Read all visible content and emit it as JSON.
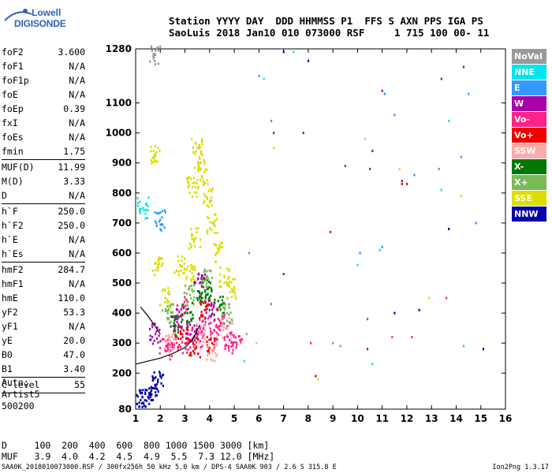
{
  "logo": {
    "line1": "Lowell",
    "line2": "DIGISONDE"
  },
  "header": {
    "line1": "Station YYYY DAY  DDD HHMMSS P1  FFS S AXN PPS IGA PS",
    "line2": "SaoLuis 2018 Jan10 010 073000 RSF     1 715 100 00- 11"
  },
  "params": [
    {
      "k": "foF2",
      "v": "3.600"
    },
    {
      "k": "foF1",
      "v": "N/A"
    },
    {
      "k": "foF1p",
      "v": "N/A"
    },
    {
      "k": "foE",
      "v": "N/A"
    },
    {
      "k": "foEp",
      "v": "0.39"
    },
    {
      "k": "fxI",
      "v": "N/A"
    },
    {
      "k": "foEs",
      "v": "N/A"
    },
    {
      "k": "fmin",
      "v": "1.75"
    },
    {
      "sep": true
    },
    {
      "k": "MUF(D)",
      "v": "11.99"
    },
    {
      "k": "M(D)",
      "v": "3.33"
    },
    {
      "k": "D",
      "v": "N/A"
    },
    {
      "sep": true
    },
    {
      "k": "h`F",
      "v": "250.0"
    },
    {
      "k": "h`F2",
      "v": "250.0"
    },
    {
      "k": "h`E",
      "v": "N/A"
    },
    {
      "k": "h`Es",
      "v": "N/A"
    },
    {
      "sep": true
    },
    {
      "k": "hmF2",
      "v": "284.7"
    },
    {
      "k": "hmF1",
      "v": "N/A"
    },
    {
      "k": "hmE",
      "v": "110.0"
    },
    {
      "k": "yF2",
      "v": "53.3"
    },
    {
      "k": "yF1",
      "v": "N/A"
    },
    {
      "k": "yE",
      "v": "20.0"
    },
    {
      "k": "B0",
      "v": "47.0"
    },
    {
      "k": "B1",
      "v": "3.40"
    },
    {
      "sep": true
    },
    {
      "k": "C-level",
      "v": "55"
    },
    {
      "sep": true
    }
  ],
  "auto": {
    "line1": "Auto:",
    "line2": "Artist5",
    "line3": "500200"
  },
  "bottom_table": {
    "row1": "D     100  200  400  600  800 1000 1500 3000 [km]",
    "row2": "MUF   3.9  4.0  4.2  4.5  4.9  5.5  7.3 12.0 [MHz]"
  },
  "footer": {
    "left": "SAA0K_2018010073000.RSF / 300fx256h 50 kHz 5.0 km / DPS-4 SAA0K 903 / 2.6 S 315.8 E",
    "right": "Ion2Png 1.3.17"
  },
  "legend": [
    {
      "label": "NoVal",
      "color": "#999999"
    },
    {
      "label": "NNE",
      "color": "#00e5ee"
    },
    {
      "label": "E",
      "color": "#3399ff"
    },
    {
      "label": "W",
      "color": "#aa00aa"
    },
    {
      "label": "Vo-",
      "color": "#ff2288"
    },
    {
      "label": "Vo+",
      "color": "#ee0000"
    },
    {
      "label": "SSW",
      "color": "#ffaaaa"
    },
    {
      "label": "X-",
      "color": "#007700"
    },
    {
      "label": "X+",
      "color": "#77bb55"
    },
    {
      "label": "SSE",
      "color": "#dddd00"
    },
    {
      "label": "NNW",
      "color": "#0000aa"
    }
  ],
  "chart_data": {
    "type": "scatter",
    "title": "",
    "xlabel": "",
    "ylabel": "",
    "xlim": [
      1,
      16
    ],
    "ylim": [
      80,
      1280
    ],
    "x_ticks": [
      1,
      2,
      3,
      4,
      5,
      6,
      7,
      8,
      9,
      10,
      11,
      12,
      13,
      14,
      15,
      16
    ],
    "y_ticks": [
      80,
      200,
      300,
      400,
      500,
      600,
      700,
      800,
      900,
      1000,
      1100,
      1280
    ],
    "grid": false,
    "legend_position": "right",
    "series": [
      {
        "color": "#dddd00",
        "points": [
          [
            3.5,
            950
          ],
          [
            3.6,
            900
          ],
          [
            3.7,
            850
          ],
          [
            3.3,
            820
          ],
          [
            3.9,
            780
          ],
          [
            4.1,
            700
          ],
          [
            3.4,
            650
          ],
          [
            4.3,
            600
          ],
          [
            2.8,
            560
          ],
          [
            3.2,
            540
          ],
          [
            4.6,
            520
          ],
          [
            4.9,
            480
          ],
          [
            2.2,
            450
          ],
          [
            1.9,
            560
          ],
          [
            11.7,
            880
          ],
          [
            14.2,
            790
          ],
          [
            6.6,
            950
          ],
          [
            12.9,
            450
          ],
          [
            1.8,
            930
          ],
          [
            8.4,
            180
          ]
        ]
      },
      {
        "color": "#ff2288",
        "points": [
          [
            3.0,
            300
          ],
          [
            2.5,
            290
          ],
          [
            3.5,
            320
          ],
          [
            4.2,
            340
          ],
          [
            4.8,
            310
          ],
          [
            2.2,
            280
          ],
          [
            3.8,
            360
          ],
          [
            4.5,
            380
          ],
          [
            5.1,
            300
          ],
          [
            2.9,
            420
          ],
          [
            11.4,
            320
          ],
          [
            12.2,
            320
          ],
          [
            10.4,
            380
          ],
          [
            8.1,
            300
          ],
          [
            13.6,
            450
          ]
        ]
      },
      {
        "color": "#aa00aa",
        "points": [
          [
            3.3,
            350
          ],
          [
            2.7,
            380
          ],
          [
            4.0,
            410
          ],
          [
            1.8,
            330
          ],
          [
            3.6,
            500
          ],
          [
            9.5,
            890
          ],
          [
            11.0,
            1140
          ],
          [
            14.3,
            1220
          ],
          [
            13.4,
            1180
          ],
          [
            6.6,
            1000
          ],
          [
            7.8,
            1000
          ],
          [
            8.9,
            670
          ],
          [
            11.8,
            840
          ]
        ]
      },
      {
        "color": "#007700",
        "points": [
          [
            3.1,
            400
          ],
          [
            3.7,
            450
          ],
          [
            2.6,
            360
          ],
          [
            4.4,
            420
          ],
          [
            10.6,
            940
          ],
          [
            10.5,
            880
          ],
          [
            7.0,
            530
          ],
          [
            3.9,
            480
          ]
        ]
      },
      {
        "color": "#3399ff",
        "points": [
          [
            2.0,
            710
          ],
          [
            5.6,
            600
          ],
          [
            6.0,
            1190
          ],
          [
            6.5,
            430
          ],
          [
            10.1,
            600
          ],
          [
            11.0,
            620
          ],
          [
            11.5,
            1060
          ],
          [
            14.2,
            920
          ],
          [
            13.3,
            880
          ],
          [
            14.5,
            1130
          ],
          [
            11.1,
            1130
          ],
          [
            6.5,
            1040
          ],
          [
            12.3,
            860
          ],
          [
            14.8,
            700
          ]
        ]
      },
      {
        "color": "#00e5ee",
        "points": [
          [
            1.3,
            750
          ],
          [
            7.4,
            1270
          ],
          [
            6.2,
            1180
          ],
          [
            10.0,
            560
          ],
          [
            10.6,
            230
          ],
          [
            10.9,
            610
          ],
          [
            13.7,
            1040
          ],
          [
            14.3,
            290
          ],
          [
            13.4,
            810
          ],
          [
            5.4,
            240
          ]
        ]
      },
      {
        "color": "#ee0000",
        "points": [
          [
            3.4,
            280
          ],
          [
            2.9,
            320
          ],
          [
            4.1,
            300
          ],
          [
            3.8,
            410
          ],
          [
            11.8,
            830
          ],
          [
            12.0,
            830
          ],
          [
            8.3,
            190
          ],
          [
            10.4,
            280
          ]
        ]
      },
      {
        "color": "#0000aa",
        "points": [
          [
            1.7,
            150
          ],
          [
            1.9,
            170
          ],
          [
            1.5,
            120
          ],
          [
            1.2,
            110
          ],
          [
            7.0,
            1270
          ],
          [
            8.0,
            1240
          ],
          [
            13.7,
            680
          ],
          [
            15.1,
            280
          ],
          [
            12.5,
            410
          ],
          [
            11.5,
            400
          ]
        ]
      },
      {
        "color": "#ffaaaa",
        "points": [
          [
            2.4,
            300
          ],
          [
            3.6,
            330
          ],
          [
            4.7,
            350
          ],
          [
            10.3,
            980
          ],
          [
            5.9,
            300
          ],
          [
            4.1,
            270
          ]
        ]
      },
      {
        "color": "#77bb55",
        "points": [
          [
            3.2,
            460
          ],
          [
            3.9,
            520
          ],
          [
            2.3,
            400
          ],
          [
            4.7,
            400
          ]
        ]
      },
      {
        "color": "#999999",
        "points": [
          [
            1.8,
            1260
          ],
          [
            9.0,
            300
          ],
          [
            9.3,
            290
          ],
          [
            5.5,
            330
          ]
        ]
      }
    ],
    "lines": [
      {
        "color": "#000000",
        "points": [
          [
            1.0,
            230
          ],
          [
            1.5,
            240
          ],
          [
            2.0,
            250
          ],
          [
            2.5,
            265
          ],
          [
            3.0,
            285
          ],
          [
            3.3,
            310
          ],
          [
            3.6,
            360
          ]
        ]
      },
      {
        "color": "#000000",
        "points": [
          [
            1.2,
            420
          ],
          [
            1.5,
            390
          ],
          [
            1.8,
            355
          ],
          [
            2.0,
            330
          ]
        ]
      }
    ]
  }
}
